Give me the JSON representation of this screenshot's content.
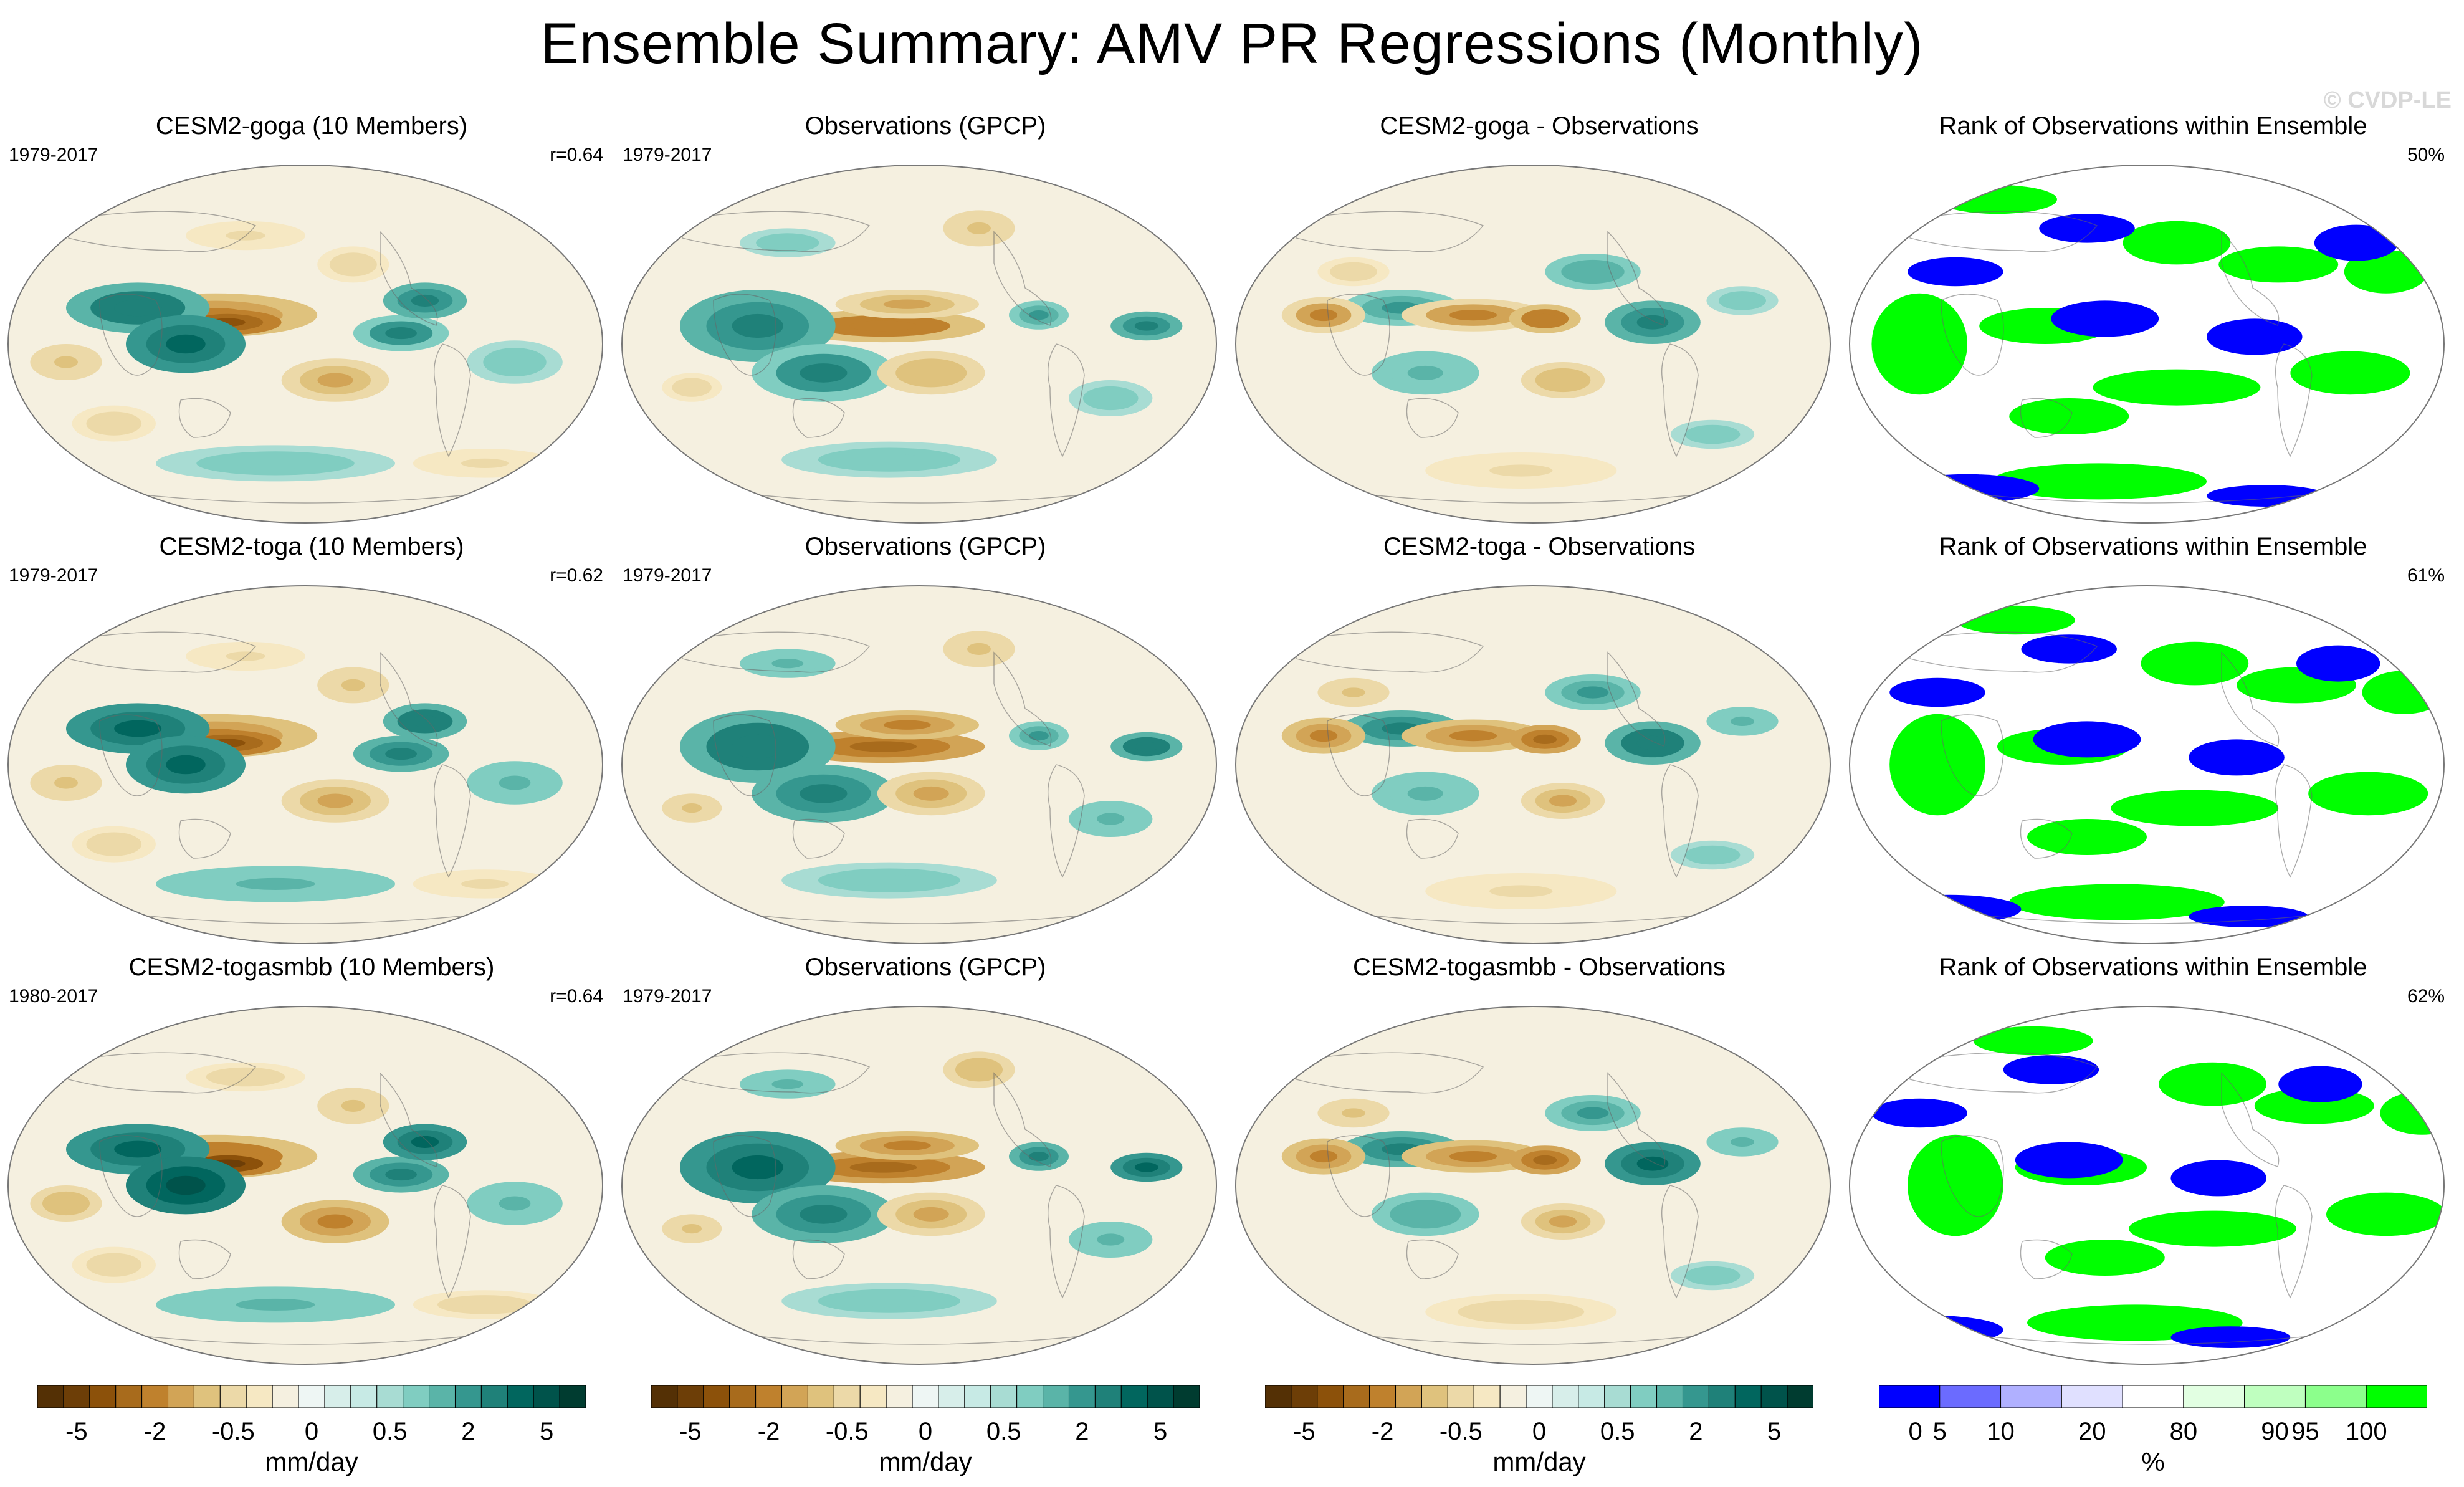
{
  "title": "Ensemble Summary: AMV PR Regressions (Monthly)",
  "watermark": "© CVDP-LE",
  "rows": [
    {
      "model": {
        "title": "CESM2-goga (10 Members)",
        "years": "1979-2017",
        "corr": "r=0.64"
      },
      "obs": {
        "title": "Observations (GPCP)",
        "years": "1979-2017"
      },
      "diff": {
        "title": "CESM2-goga - Observations"
      },
      "rank": {
        "title": "Rank of Observations within Ensemble",
        "pct": "50%"
      }
    },
    {
      "model": {
        "title": "CESM2-toga (10 Members)",
        "years": "1979-2017",
        "corr": "r=0.62"
      },
      "obs": {
        "title": "Observations (GPCP)",
        "years": "1979-2017"
      },
      "diff": {
        "title": "CESM2-toga - Observations"
      },
      "rank": {
        "title": "Rank of Observations within Ensemble",
        "pct": "61%"
      }
    },
    {
      "model": {
        "title": "CESM2-togasmbb (10 Members)",
        "years": "1980-2017",
        "corr": "r=0.64"
      },
      "obs": {
        "title": "Observations (GPCP)",
        "years": "1979-2017"
      },
      "diff": {
        "title": "CESM2-togasmbb - Observations"
      },
      "rank": {
        "title": "Rank of Observations within Ensemble",
        "pct": "62%"
      }
    }
  ],
  "colorbar": {
    "units": "mm/day",
    "tick_labels": [
      "-5",
      "-2",
      "-0.5",
      "0",
      "0.5",
      "2",
      "5"
    ],
    "colors": [
      "#543005",
      "#6d3e07",
      "#8c510a",
      "#a86b1c",
      "#bf812d",
      "#d2a456",
      "#dfc27d",
      "#ecd9a8",
      "#f6e8c3",
      "#f5f0e0",
      "#eef6f4",
      "#d7eeea",
      "#c7eae5",
      "#a8dcd3",
      "#80cdc1",
      "#5ab4a8",
      "#35978f",
      "#1f8179",
      "#01665e",
      "#00534b",
      "#003c30"
    ]
  },
  "rank_colorbar": {
    "units": "%",
    "tick_labels": [
      "0",
      "5",
      "10",
      "20",
      "80",
      "90",
      "95",
      "100"
    ],
    "colors": [
      "#0000ff",
      "#6b6bff",
      "#b0b0ff",
      "#e0e0ff",
      "#ffffff",
      "#e2ffe2",
      "#bfffbf",
      "#8cff8c",
      "#00ff00"
    ]
  },
  "chart_data": [
    {
      "type": "heatmap",
      "title": "CESM2-goga (10 Members)",
      "period": "1979-2017",
      "pattern_correlation": 0.64,
      "units": "mm/day",
      "contour_levels": [
        -5,
        -4,
        -3,
        -2,
        -1.5,
        -1,
        -0.5,
        -0.25,
        -0.1,
        0,
        0.1,
        0.25,
        0.5,
        1,
        1.5,
        2,
        3,
        4,
        5
      ]
    },
    {
      "type": "heatmap",
      "title": "Observations (GPCP)",
      "period": "1979-2017",
      "units": "mm/day"
    },
    {
      "type": "heatmap",
      "title": "CESM2-goga - Observations",
      "units": "mm/day"
    },
    {
      "type": "heatmap",
      "title": "Rank of Observations within Ensemble",
      "percent_in_range": 50,
      "units": "%",
      "levels": [
        0,
        5,
        10,
        20,
        80,
        90,
        95,
        100
      ]
    },
    {
      "type": "heatmap",
      "title": "CESM2-toga (10 Members)",
      "period": "1979-2017",
      "pattern_correlation": 0.62,
      "units": "mm/day"
    },
    {
      "type": "heatmap",
      "title": "Observations (GPCP)",
      "period": "1979-2017",
      "units": "mm/day"
    },
    {
      "type": "heatmap",
      "title": "CESM2-toga - Observations",
      "units": "mm/day"
    },
    {
      "type": "heatmap",
      "title": "Rank of Observations within Ensemble",
      "percent_in_range": 61,
      "units": "%"
    },
    {
      "type": "heatmap",
      "title": "CESM2-togasmbb (10 Members)",
      "period": "1980-2017",
      "pattern_correlation": 0.64,
      "units": "mm/day"
    },
    {
      "type": "heatmap",
      "title": "Observations (GPCP)",
      "period": "1979-2017",
      "units": "mm/day"
    },
    {
      "type": "heatmap",
      "title": "CESM2-togasmbb - Observations",
      "units": "mm/day"
    },
    {
      "type": "heatmap",
      "title": "Rank of Observations within Ensemble",
      "percent_in_range": 62,
      "units": "%"
    }
  ]
}
